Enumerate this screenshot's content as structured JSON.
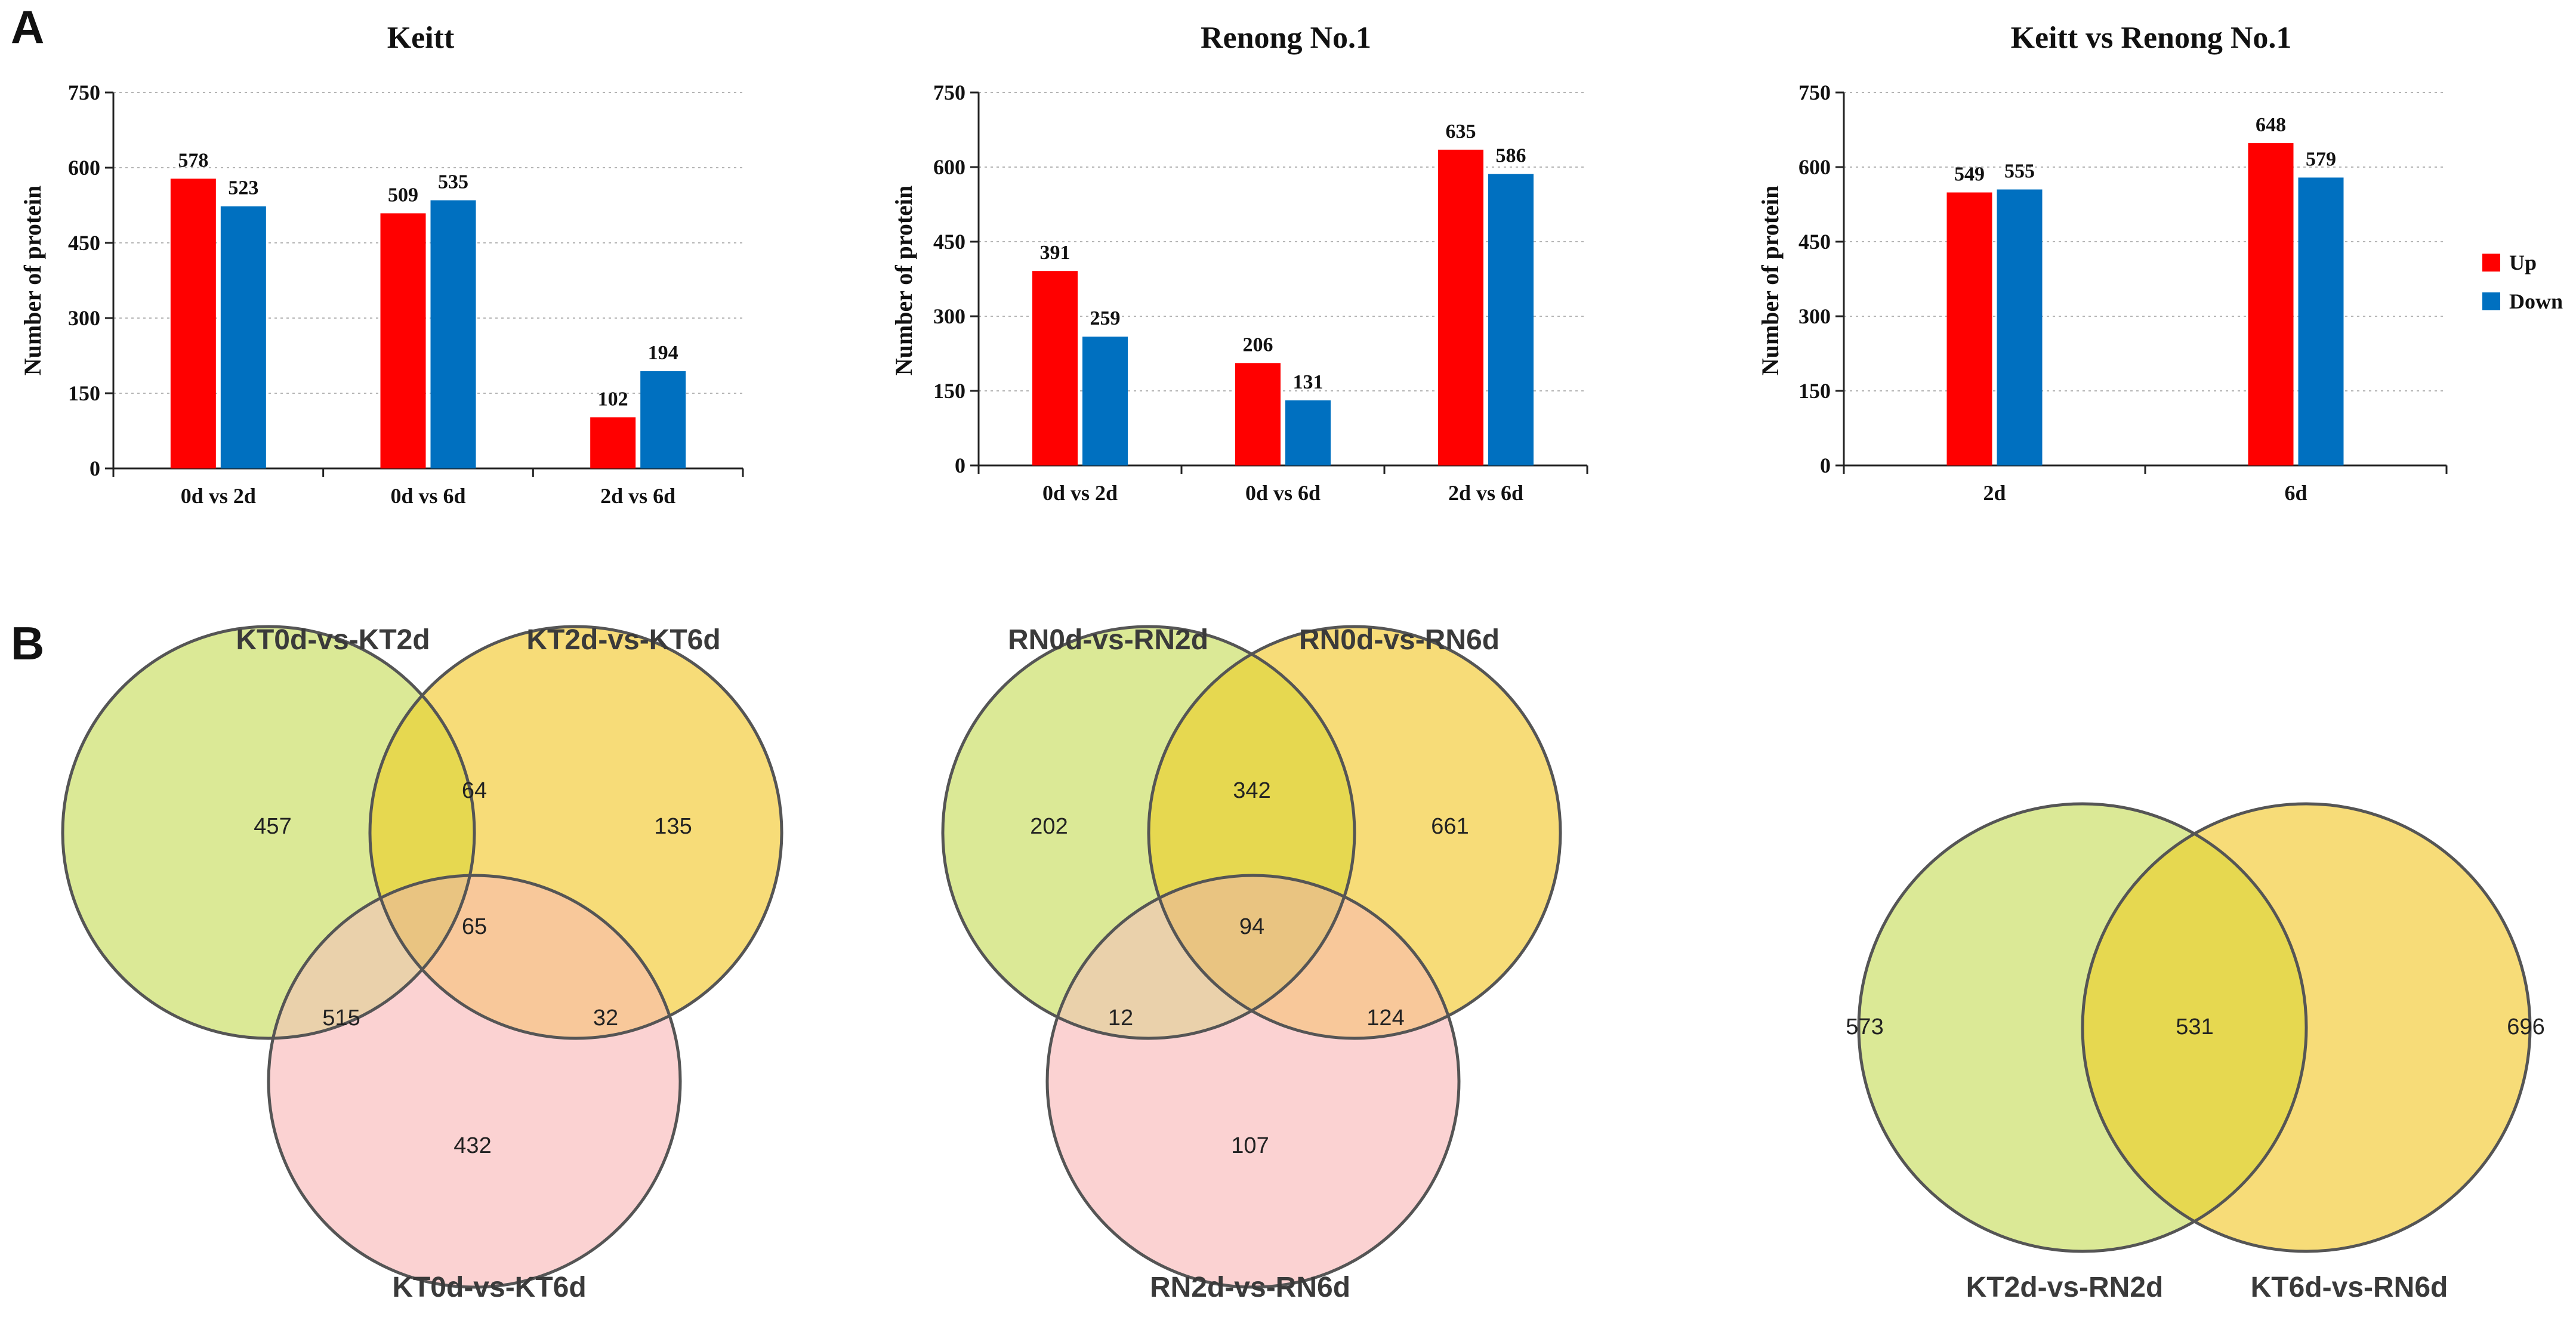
{
  "panels": {
    "a": "A",
    "b": "B"
  },
  "colors": {
    "up": "#ff0000",
    "down": "#0070c0",
    "green": "#dbe996",
    "yellow": "#f7dc78",
    "pink": "#fbd2d2"
  },
  "chart_data": [
    {
      "type": "bar",
      "title": "Keitt",
      "ylabel": "Number of protein",
      "xlabel": "",
      "categories": [
        "0d vs 2d",
        "0d vs 6d",
        "2d vs 6d"
      ],
      "ylim": [
        0,
        750
      ],
      "yticks": [
        0,
        150,
        300,
        450,
        600,
        750
      ],
      "grid": true,
      "series": [
        {
          "name": "Up",
          "values": [
            578,
            509,
            102
          ]
        },
        {
          "name": "Down",
          "values": [
            523,
            535,
            194
          ]
        }
      ]
    },
    {
      "type": "bar",
      "title": "Renong No.1",
      "ylabel": "Number of protein",
      "xlabel": "",
      "categories": [
        "0d vs 2d",
        "0d vs 6d",
        "2d vs 6d"
      ],
      "ylim": [
        0,
        750
      ],
      "yticks": [
        0,
        150,
        300,
        450,
        600,
        750
      ],
      "grid": true,
      "series": [
        {
          "name": "Up",
          "values": [
            391,
            206,
            635
          ]
        },
        {
          "name": "Down",
          "values": [
            259,
            131,
            586
          ]
        }
      ]
    },
    {
      "type": "bar",
      "title": "Keitt vs Renong No.1",
      "ylabel": "Number of protein",
      "xlabel": "",
      "categories": [
        "2d",
        "6d"
      ],
      "ylim": [
        0,
        750
      ],
      "yticks": [
        0,
        150,
        300,
        450,
        600,
        750
      ],
      "grid": true,
      "legend": "right",
      "series": [
        {
          "name": "Up",
          "values": [
            549,
            648
          ]
        },
        {
          "name": "Down",
          "values": [
            555,
            579
          ]
        }
      ]
    }
  ],
  "legend": [
    {
      "label": "Up",
      "color": "#ff0000"
    },
    {
      "label": "Down",
      "color": "#0070c0"
    }
  ],
  "venns": [
    {
      "sets": [
        "KT0d-vs-KT2d",
        "KT2d-vs-KT6d",
        "KT0d-vs-KT6d"
      ],
      "counts": {
        "a_only": "457",
        "ab": "64",
        "b_only": "135",
        "abc": "65",
        "ac": "515",
        "bc": "32",
        "c_only": "432"
      }
    },
    {
      "sets": [
        "RN0d-vs-RN2d",
        "RN0d-vs-RN6d",
        "RN2d-vs-RN6d"
      ],
      "counts": {
        "a_only": "202",
        "ab": "342",
        "b_only": "661",
        "abc": "94",
        "ac": "12",
        "bc": "124",
        "c_only": "107"
      }
    },
    {
      "sets": [
        "KT2d-vs-RN2d",
        "KT6d-vs-RN6d"
      ],
      "counts": {
        "a_only": "573",
        "ab": "531",
        "b_only": "696"
      }
    }
  ]
}
